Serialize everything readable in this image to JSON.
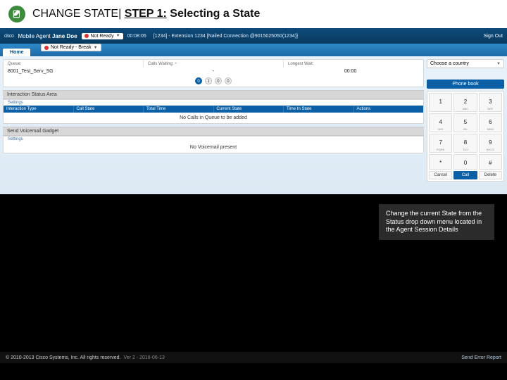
{
  "slide": {
    "title_prefix": "CHANGE STATE| ",
    "title_step": "STEP 1:",
    "title_suffix": " Selecting a State"
  },
  "topbar": {
    "vendor": "cisco",
    "agent_label": "Mobile Agent",
    "agent_name": "Jane Doe",
    "status1": "Not Ready",
    "status2": "Not Ready - Break",
    "timer": "00:08:05",
    "extension": "[1234] - Extension 1234 [Nailed Connection @9015025050(1234)]",
    "signout": "Sign Out"
  },
  "tabs": {
    "home": "Home"
  },
  "stats": {
    "queue_label": "Queue:",
    "calls_waiting_label": "Calls Waiting:",
    "calls_waiting_value": "-",
    "longest_wait_label": "Longest Wait:",
    "queue_name": "8001_Test_Serv_SG",
    "queue_waiting": "-",
    "queue_longest": "00:00"
  },
  "pills": [
    "0",
    "1",
    "0",
    "0"
  ],
  "interaction": {
    "title": "Interaction Status Area",
    "settings": "Settings",
    "cols": [
      "Interaction Type",
      "Call State",
      "Total Time",
      "Current State",
      "Time In State",
      "Actions"
    ],
    "empty": "No Calls in Queue to be added"
  },
  "voicemail": {
    "title": "Send Voicemail Gadget",
    "settings": "Settings",
    "empty": "No Voicemail present"
  },
  "dialer": {
    "dropdown": "Choose a country",
    "phonebook": "Phone book",
    "keys": [
      {
        "n": "1",
        "l": ""
      },
      {
        "n": "2",
        "l": "ABC"
      },
      {
        "n": "3",
        "l": "DEF"
      },
      {
        "n": "4",
        "l": "GHI"
      },
      {
        "n": "5",
        "l": "JKL"
      },
      {
        "n": "6",
        "l": "MNO"
      },
      {
        "n": "7",
        "l": "PQRS"
      },
      {
        "n": "8",
        "l": "TUV"
      },
      {
        "n": "9",
        "l": "WXYZ"
      },
      {
        "n": "*",
        "l": ""
      },
      {
        "n": "0",
        "l": ""
      },
      {
        "n": "#",
        "l": ""
      }
    ],
    "cancel": "Cancel",
    "call": "Call",
    "delete": "Delete"
  },
  "callout": "Change the current State from the Status drop down menu located in the Agent Session Details",
  "footer": {
    "copyright": "© 2010-2013 Cisco Systems, Inc. All rights reserved.",
    "version": "Ver 2 - 2016-06-13",
    "error_report": "Send Error Report"
  }
}
